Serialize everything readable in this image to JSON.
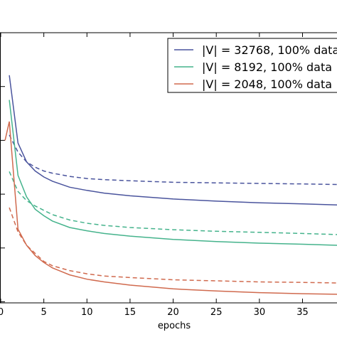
{
  "chart_data": {
    "type": "line",
    "xlabel": "epochs",
    "ylabel": "",
    "xlim": [
      0,
      39
    ],
    "ylim": [
      0.98,
      6.0
    ],
    "x_ticks": [
      0,
      5,
      10,
      15,
      20,
      25,
      30,
      35
    ],
    "y_ticks": [
      1.0,
      2.0,
      3.0,
      4.0,
      5.0
    ],
    "legend_position": "upper right",
    "series": [
      {
        "name": "|V| = 32768, 100% data",
        "color": "#4a549d",
        "style": "solid",
        "x": [
          1,
          2,
          3,
          4,
          5,
          6,
          8,
          10,
          12,
          15,
          20,
          25,
          30,
          35,
          39
        ],
        "y": [
          5.21,
          3.95,
          3.6,
          3.43,
          3.32,
          3.24,
          3.13,
          3.07,
          3.02,
          2.97,
          2.91,
          2.87,
          2.84,
          2.82,
          2.8
        ]
      },
      {
        "name": "",
        "color": "#4a549d",
        "style": "dashed",
        "x": [
          1,
          2,
          3,
          4,
          5,
          6,
          8,
          10,
          12,
          15,
          20,
          25,
          30,
          35,
          39
        ],
        "y": [
          4.1,
          3.78,
          3.6,
          3.5,
          3.43,
          3.39,
          3.33,
          3.29,
          3.27,
          3.25,
          3.22,
          3.21,
          3.2,
          3.19,
          3.18
        ]
      },
      {
        "name": "|V| = 8192, 100% data",
        "color": "#45b38c",
        "style": "solid",
        "x": [
          1,
          2,
          3,
          4,
          5,
          6,
          8,
          10,
          12,
          15,
          20,
          25,
          30,
          35,
          39
        ],
        "y": [
          4.75,
          3.35,
          2.95,
          2.72,
          2.6,
          2.5,
          2.38,
          2.32,
          2.27,
          2.22,
          2.16,
          2.12,
          2.09,
          2.07,
          2.05
        ]
      },
      {
        "name": "",
        "color": "#45b38c",
        "style": "dashed",
        "x": [
          1,
          2,
          3,
          4,
          5,
          6,
          8,
          10,
          12,
          15,
          20,
          25,
          30,
          35,
          39
        ],
        "y": [
          3.42,
          3.05,
          2.88,
          2.78,
          2.7,
          2.62,
          2.52,
          2.46,
          2.42,
          2.38,
          2.34,
          2.31,
          2.29,
          2.27,
          2.25
        ]
      },
      {
        "name": "|V| = 2048, 100% data",
        "color": "#d06a4e",
        "style": "solid",
        "x": [
          0.5,
          1,
          2,
          3,
          4,
          5,
          6,
          8,
          10,
          12,
          15,
          20,
          25,
          30,
          35,
          39
        ],
        "y": [
          4.0,
          4.35,
          2.35,
          2.05,
          1.86,
          1.73,
          1.63,
          1.5,
          1.42,
          1.37,
          1.31,
          1.24,
          1.2,
          1.17,
          1.15,
          1.14
        ]
      },
      {
        "name": "",
        "color": "#d06a4e",
        "style": "dashed",
        "x": [
          1,
          2,
          3,
          4,
          5,
          6,
          8,
          10,
          12,
          15,
          20,
          25,
          30,
          35,
          39
        ],
        "y": [
          2.75,
          2.3,
          2.05,
          1.9,
          1.75,
          1.67,
          1.58,
          1.52,
          1.48,
          1.45,
          1.41,
          1.39,
          1.37,
          1.36,
          1.35
        ]
      }
    ]
  }
}
